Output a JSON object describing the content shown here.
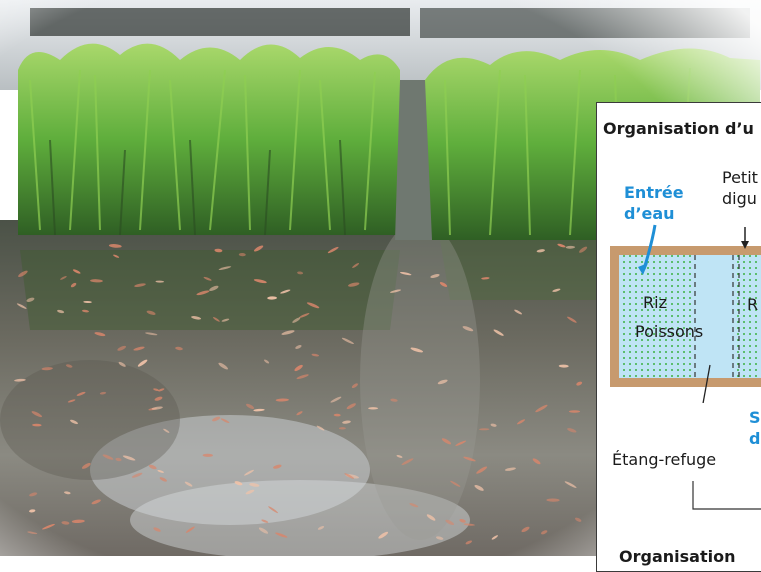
{
  "diagram": {
    "title": "Organisation d’u",
    "labels": {
      "water_inlet_line1": "Entrée",
      "water_inlet_line2": "d’eau",
      "small_dike_line1": "Petit",
      "small_dike_line2": "digu",
      "rice": "Riz",
      "rice_partial": "R",
      "fish": "Poissons",
      "refuge_pond": "Étang-refuge",
      "outlet_line1": "S",
      "outlet_line2": "d",
      "bottom_title": "Organisation"
    },
    "colors": {
      "dike": "#c79a6e",
      "water": "#bfe4f5",
      "rice_dots": "#3cb043",
      "accent_blue": "#1f8fd6"
    }
  }
}
